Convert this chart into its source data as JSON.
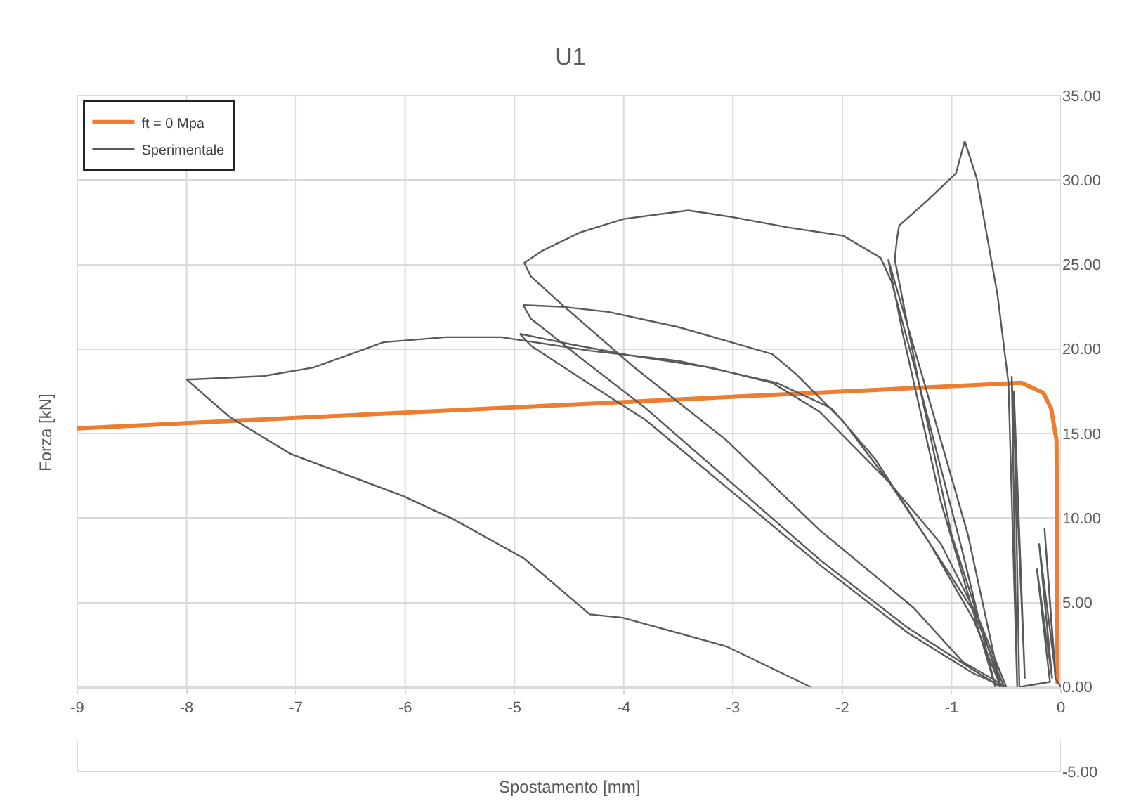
{
  "chart_data": {
    "type": "line",
    "title": "U1",
    "xlabel": "Spostamento [mm]",
    "ylabel": "Forza [kN]",
    "xlim": [
      -9,
      0
    ],
    "xticks": [
      -9,
      -8,
      -7,
      -6,
      -5,
      -4,
      -3,
      -2,
      -1,
      0
    ],
    "ylim": [
      -5,
      35
    ],
    "yticks": [
      {
        "value": -5,
        "label": "-5.00"
      },
      {
        "value": 0,
        "label": "0.00"
      },
      {
        "value": 5,
        "label": "5.00"
      },
      {
        "value": 10,
        "label": "10.00"
      },
      {
        "value": 15,
        "label": "15.00"
      },
      {
        "value": 20,
        "label": "20.00"
      },
      {
        "value": 25,
        "label": "25.00"
      },
      {
        "value": 30,
        "label": "30.00"
      },
      {
        "value": 35,
        "label": "35.00"
      }
    ],
    "grid": true,
    "legend": "top left",
    "marker": "none",
    "line_style": "solid",
    "series": [
      {
        "name": "ft = 0 Mpa",
        "color": "#ed7d31",
        "x": [
          -9,
          -0.36,
          -0.16,
          -0.09,
          -0.04,
          -0.03
        ],
        "values": [
          15.3,
          18.0,
          17.4,
          16.5,
          14.6,
          0.2
        ]
      },
      {
        "name": "Sperimentale",
        "color": "#595959",
        "x": [
          0,
          -0.05,
          -0.15,
          -0.05,
          -0.2,
          -0.08,
          -0.22,
          -0.1,
          -0.38,
          -0.43,
          -0.33,
          -0.45,
          -0.4,
          -0.48,
          -0.58,
          -0.77,
          -0.88,
          -0.96,
          -1.22,
          -1.48,
          -1.5,
          -1.52,
          -1.3,
          -1.0,
          -0.55,
          -0.85,
          -1.25,
          -1.58,
          -1.45,
          -1.1,
          -0.6,
          -0.9,
          -1.3,
          -1.55,
          -1.65,
          -1.99,
          -2.5,
          -3.0,
          -3.41,
          -4.0,
          -4.4,
          -4.75,
          -4.91,
          -4.85,
          -4.56,
          -3.92,
          -3.06,
          -2.21,
          -1.35,
          -0.9,
          -0.5,
          -0.75,
          -1.1,
          -1.57,
          -1.99,
          -2.42,
          -2.64,
          -3.5,
          -4.14,
          -4.56,
          -4.92,
          -4.85,
          -4.4,
          -3.8,
          -3.0,
          -2.2,
          -1.4,
          -0.8,
          -0.55,
          -0.8,
          -1.2,
          -1.57,
          -2.21,
          -2.64,
          -3.2,
          -3.92,
          -4.5,
          -4.95,
          -4.85,
          -4.4,
          -3.8,
          -3.0,
          -2.2,
          -1.4,
          -0.8,
          -0.52,
          -0.8,
          -1.3,
          -1.7,
          -2.1,
          -2.6,
          -3.5,
          -4.31,
          -5.12,
          -5.63,
          -6.2,
          -6.84,
          -7.3,
          -7.95,
          -8.0,
          -7.61,
          -7.05,
          -6.02,
          -5.55,
          -4.91,
          -4.31,
          -4.01,
          -3.06,
          -2.29
        ],
        "values": [
          0,
          0.5,
          9.4,
          0.8,
          8.5,
          0.5,
          7,
          0.3,
          0,
          17.5,
          0.5,
          18.4,
          0,
          18,
          23.2,
          30.1,
          32.3,
          30.4,
          28.8,
          27.3,
          26.5,
          25.3,
          18,
          9,
          0,
          9,
          18,
          25.3,
          21,
          11,
          0,
          8,
          18,
          24,
          25.4,
          26.7,
          27.2,
          27.8,
          28.2,
          27.7,
          26.9,
          25.8,
          25.1,
          24.3,
          22.6,
          19.0,
          14.6,
          9.3,
          4.7,
          1.5,
          0,
          4,
          8.5,
          12.1,
          15.7,
          18.5,
          19.7,
          21.3,
          22.2,
          22.5,
          22.6,
          21.8,
          19.5,
          16.5,
          12,
          7.5,
          3.5,
          1,
          0,
          4,
          8.5,
          12.1,
          16.3,
          18.0,
          18.9,
          19.6,
          20.3,
          20.9,
          20.2,
          18.3,
          15.8,
          11.5,
          7.2,
          3.2,
          0.8,
          0,
          4.5,
          9.5,
          13.5,
          16.5,
          18,
          19.3,
          19.9,
          20.7,
          20.7,
          20.4,
          18.9,
          18.4,
          18.2,
          18.2,
          16.0,
          13.8,
          11.3,
          9.9,
          7.6,
          4.3,
          4.1,
          2.4,
          0
        ]
      }
    ]
  }
}
